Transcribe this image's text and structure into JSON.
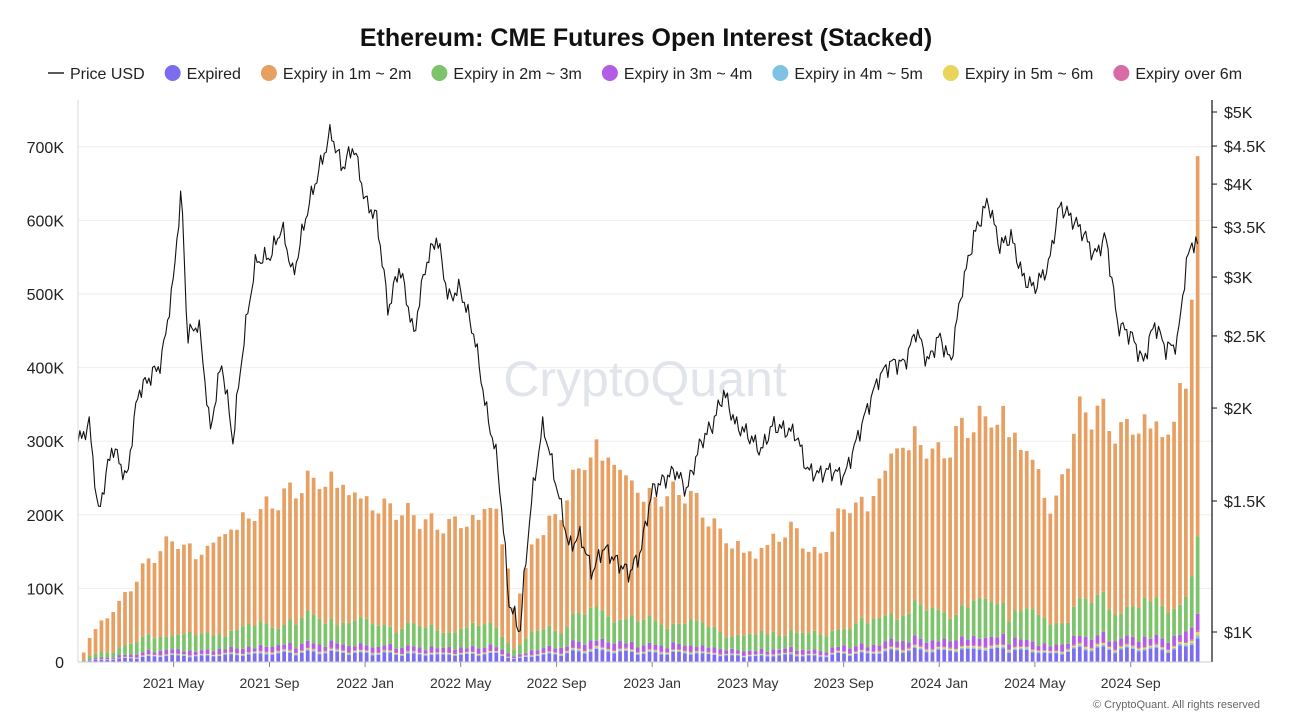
{
  "chart_data": {
    "type": "bar",
    "title": "Ethereum: CME Futures Open Interest (Stacked)",
    "watermark": "CryptoQuant",
    "copyright": "© CryptoQuant. All rights reserved",
    "left_axis": {
      "range": [
        0,
        750000
      ],
      "ticks": [
        0,
        100000,
        200000,
        300000,
        400000,
        500000,
        600000,
        700000
      ],
      "tick_labels": [
        "0",
        "100K",
        "200K",
        "300K",
        "400K",
        "500K",
        "600K",
        "700K"
      ]
    },
    "right_axis": {
      "scale": "log",
      "range": [
        900,
        5000
      ],
      "ticks": [
        1000,
        1500,
        2000,
        2500,
        3000,
        3500,
        4000,
        4500,
        5000
      ],
      "tick_labels": [
        "$1K",
        "$1.5K",
        "$2K",
        "$2.5K",
        "$3K",
        "$3.5K",
        "$4K",
        "$4.5K",
        "$5K"
      ]
    },
    "x_axis": {
      "range": [
        2021.0,
        2024.95
      ],
      "ticks": [
        2021.333,
        2021.667,
        2022.0,
        2022.333,
        2022.667,
        2023.0,
        2023.333,
        2023.667,
        2024.0,
        2024.333,
        2024.667
      ],
      "tick_labels": [
        "2021 May",
        "2021 Sep",
        "2022 Jan",
        "2022 May",
        "2022 Sep",
        "2023 Jan",
        "2023 May",
        "2023 Sep",
        "2024 Jan",
        "2024 May",
        "2024 Sep"
      ]
    },
    "legend": [
      {
        "name": "Price USD",
        "color": "#222222",
        "kind": "line"
      },
      {
        "name": "Expired",
        "color": "#7b6cf0",
        "kind": "dot"
      },
      {
        "name": "Expiry in 1m ~ 2m",
        "color": "#e8a062",
        "kind": "dot"
      },
      {
        "name": "Expiry in 2m ~ 3m",
        "color": "#7cc36a",
        "kind": "dot"
      },
      {
        "name": "Expiry in 3m ~ 4m",
        "color": "#b35ce6",
        "kind": "dot"
      },
      {
        "name": "Expiry in 4m ~ 5m",
        "color": "#7ec3e4",
        "kind": "dot"
      },
      {
        "name": "Expiry in 5m ~ 6m",
        "color": "#e9d45c",
        "kind": "dot"
      },
      {
        "name": "Expiry over 6m",
        "color": "#d86aa6",
        "kind": "dot"
      }
    ],
    "open_interest_total_anchors": [
      [
        2021.02,
        15000
      ],
      [
        2021.05,
        45000
      ],
      [
        2021.15,
        90000
      ],
      [
        2021.25,
        150000
      ],
      [
        2021.33,
        180000
      ],
      [
        2021.42,
        160000
      ],
      [
        2021.55,
        205000
      ],
      [
        2021.67,
        230000
      ],
      [
        2021.8,
        265000
      ],
      [
        2021.9,
        270000
      ],
      [
        2022.0,
        240000
      ],
      [
        2022.1,
        225000
      ],
      [
        2022.25,
        200000
      ],
      [
        2022.4,
        215000
      ],
      [
        2022.45,
        245000
      ],
      [
        2022.52,
        80000
      ],
      [
        2022.6,
        190000
      ],
      [
        2022.67,
        210000
      ],
      [
        2022.75,
        290000
      ],
      [
        2022.82,
        320000
      ],
      [
        2022.92,
        270000
      ],
      [
        2023.0,
        240000
      ],
      [
        2023.12,
        250000
      ],
      [
        2023.25,
        185000
      ],
      [
        2023.35,
        160000
      ],
      [
        2023.48,
        200000
      ],
      [
        2023.58,
        150000
      ],
      [
        2023.67,
        230000
      ],
      [
        2023.75,
        235000
      ],
      [
        2023.85,
        320000
      ],
      [
        2023.92,
        330000
      ],
      [
        2024.0,
        300000
      ],
      [
        2024.1,
        350000
      ],
      [
        2024.22,
        365000
      ],
      [
        2024.32,
        305000
      ],
      [
        2024.4,
        220000
      ],
      [
        2024.48,
        360000
      ],
      [
        2024.55,
        370000
      ],
      [
        2024.62,
        340000
      ],
      [
        2024.72,
        360000
      ],
      [
        2024.8,
        340000
      ],
      [
        2024.86,
        420000
      ],
      [
        2024.9,
        720000
      ]
    ],
    "price_usd_anchors": [
      [
        2021.0,
        1800
      ],
      [
        2021.04,
        1900
      ],
      [
        2021.07,
        1430
      ],
      [
        2021.12,
        1780
      ],
      [
        2021.17,
        1600
      ],
      [
        2021.21,
        2100
      ],
      [
        2021.29,
        2300
      ],
      [
        2021.33,
        2900
      ],
      [
        2021.36,
        3900
      ],
      [
        2021.38,
        2500
      ],
      [
        2021.42,
        2600
      ],
      [
        2021.46,
        1850
      ],
      [
        2021.5,
        2300
      ],
      [
        2021.54,
        1800
      ],
      [
        2021.58,
        2500
      ],
      [
        2021.62,
        3150
      ],
      [
        2021.67,
        3200
      ],
      [
        2021.71,
        3500
      ],
      [
        2021.75,
        3000
      ],
      [
        2021.8,
        3700
      ],
      [
        2021.85,
        4300
      ],
      [
        2021.88,
        4700
      ],
      [
        2021.92,
        4200
      ],
      [
        2021.96,
        4500
      ],
      [
        2022.0,
        3800
      ],
      [
        2022.04,
        3600
      ],
      [
        2022.08,
        2700
      ],
      [
        2022.12,
        3100
      ],
      [
        2022.17,
        2500
      ],
      [
        2022.21,
        3100
      ],
      [
        2022.25,
        3400
      ],
      [
        2022.29,
        2800
      ],
      [
        2022.33,
        2900
      ],
      [
        2022.38,
        2500
      ],
      [
        2022.42,
        2000
      ],
      [
        2022.46,
        1700
      ],
      [
        2022.5,
        1100
      ],
      [
        2022.54,
        1000
      ],
      [
        2022.58,
        1500
      ],
      [
        2022.62,
        1900
      ],
      [
        2022.67,
        1550
      ],
      [
        2022.71,
        1300
      ],
      [
        2022.75,
        1350
      ],
      [
        2022.79,
        1200
      ],
      [
        2022.83,
        1300
      ],
      [
        2022.87,
        1250
      ],
      [
        2022.92,
        1200
      ],
      [
        2022.96,
        1280
      ],
      [
        2023.0,
        1550
      ],
      [
        2023.04,
        1600
      ],
      [
        2023.08,
        1650
      ],
      [
        2023.12,
        1550
      ],
      [
        2023.17,
        1800
      ],
      [
        2023.21,
        1900
      ],
      [
        2023.25,
        2100
      ],
      [
        2023.29,
        1900
      ],
      [
        2023.33,
        1850
      ],
      [
        2023.38,
        1750
      ],
      [
        2023.42,
        1900
      ],
      [
        2023.46,
        1870
      ],
      [
        2023.5,
        1850
      ],
      [
        2023.54,
        1650
      ],
      [
        2023.58,
        1630
      ],
      [
        2023.62,
        1650
      ],
      [
        2023.67,
        1620
      ],
      [
        2023.71,
        1800
      ],
      [
        2023.75,
        2000
      ],
      [
        2023.79,
        2200
      ],
      [
        2023.83,
        2300
      ],
      [
        2023.88,
        2300
      ],
      [
        2023.92,
        2550
      ],
      [
        2023.96,
        2300
      ],
      [
        2024.0,
        2500
      ],
      [
        2024.04,
        2300
      ],
      [
        2024.08,
        2900
      ],
      [
        2024.12,
        3400
      ],
      [
        2024.17,
        3800
      ],
      [
        2024.21,
        3300
      ],
      [
        2024.25,
        3400
      ],
      [
        2024.29,
        3000
      ],
      [
        2024.33,
        2900
      ],
      [
        2024.38,
        3100
      ],
      [
        2024.42,
        3750
      ],
      [
        2024.46,
        3600
      ],
      [
        2024.5,
        3450
      ],
      [
        2024.54,
        3200
      ],
      [
        2024.58,
        3400
      ],
      [
        2024.62,
        2600
      ],
      [
        2024.67,
        2500
      ],
      [
        2024.71,
        2300
      ],
      [
        2024.75,
        2600
      ],
      [
        2024.79,
        2400
      ],
      [
        2024.83,
        2450
      ],
      [
        2024.86,
        3100
      ],
      [
        2024.88,
        3350
      ],
      [
        2024.9,
        3300
      ]
    ]
  }
}
